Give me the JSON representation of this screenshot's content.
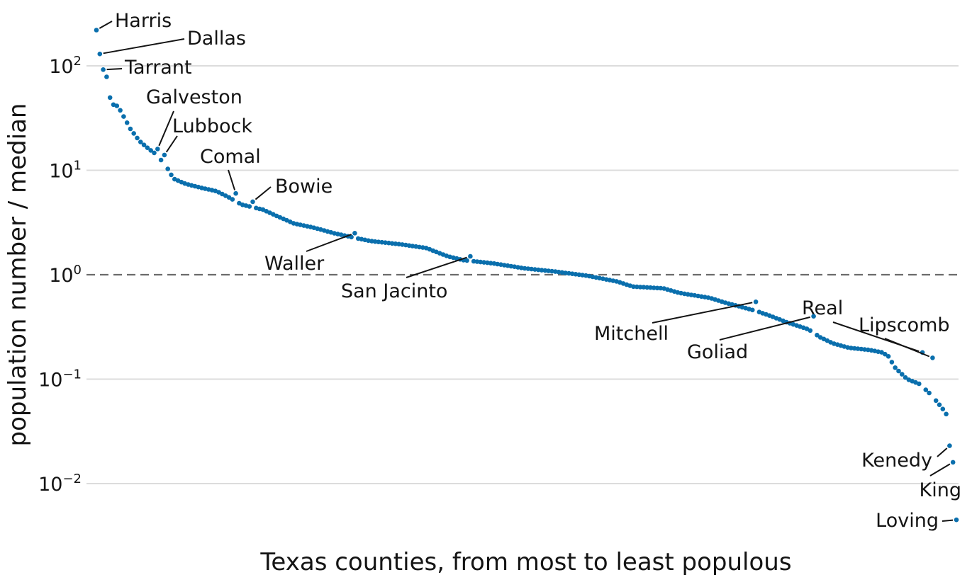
{
  "chart_data": {
    "type": "scatter",
    "xlabel": "Texas counties, from most to least populous",
    "ylabel": "population number / median",
    "y_scale": "log10",
    "ylim": [
      0.0035,
      300
    ],
    "grid": "horizontal",
    "reference_line": {
      "y": 1,
      "style": "dashed"
    },
    "y_ticks": [
      {
        "value": 0.01,
        "base": "10",
        "exp": "−2"
      },
      {
        "value": 0.1,
        "base": "10",
        "exp": "−1"
      },
      {
        "value": 1,
        "base": "10",
        "exp": "0"
      },
      {
        "value": 10,
        "base": "10",
        "exp": "1"
      },
      {
        "value": 100,
        "base": "10",
        "exp": "2"
      }
    ],
    "point_color": "#0a6fad",
    "n_counties": 254,
    "curve_anchors": [
      [
        1,
        220
      ],
      [
        2,
        130
      ],
      [
        3,
        100
      ],
      [
        4,
        92
      ],
      [
        5,
        55
      ],
      [
        6,
        43
      ],
      [
        8,
        41
      ],
      [
        10,
        32
      ],
      [
        12,
        25
      ],
      [
        15,
        19
      ],
      [
        18,
        16
      ],
      [
        20,
        14.5
      ],
      [
        22,
        12.5
      ],
      [
        24,
        10.5
      ],
      [
        26,
        8.3
      ],
      [
        30,
        7.4
      ],
      [
        35,
        6.8
      ],
      [
        40,
        6.3
      ],
      [
        44,
        5.5
      ],
      [
        48,
        4.7
      ],
      [
        55,
        4.2
      ],
      [
        60,
        3.6
      ],
      [
        65,
        3.1
      ],
      [
        72,
        2.8
      ],
      [
        78,
        2.5
      ],
      [
        85,
        2.25
      ],
      [
        90,
        2.1
      ],
      [
        100,
        1.95
      ],
      [
        108,
        1.8
      ],
      [
        115,
        1.5
      ],
      [
        120,
        1.38
      ],
      [
        130,
        1.28
      ],
      [
        140,
        1.15
      ],
      [
        150,
        1.07
      ],
      [
        160,
        0.98
      ],
      [
        170,
        0.86
      ],
      [
        175,
        0.77
      ],
      [
        185,
        0.74
      ],
      [
        190,
        0.67
      ],
      [
        200,
        0.6
      ],
      [
        205,
        0.54
      ],
      [
        215,
        0.45
      ],
      [
        220,
        0.4
      ],
      [
        225,
        0.35
      ],
      [
        232,
        0.3
      ],
      [
        236,
        0.25
      ],
      [
        240,
        0.22
      ],
      [
        245,
        0.2
      ],
      [
        252,
        0.19
      ],
      [
        256,
        0.18
      ],
      [
        258,
        0.165
      ],
      [
        260,
        0.13
      ],
      [
        264,
        0.1
      ],
      [
        268,
        0.09
      ],
      [
        272,
        0.07
      ],
      [
        276,
        0.05
      ],
      [
        278,
        0.04
      ],
      [
        280,
        0.034
      ]
    ],
    "highlighted": [
      {
        "name": "Harris",
        "rank": 1,
        "value": 220
      },
      {
        "name": "Dallas",
        "rank": 2,
        "value": 130
      },
      {
        "name": "Tarrant",
        "rank": 3,
        "value": 92
      },
      {
        "name": "Galveston",
        "rank": 19,
        "value": 16
      },
      {
        "name": "Lubbock",
        "rank": 21,
        "value": 14
      },
      {
        "name": "Comal",
        "rank": 42,
        "value": 6
      },
      {
        "name": "Bowie",
        "rank": 47,
        "value": 5
      },
      {
        "name": "Waller",
        "rank": 77,
        "value": 2.5
      },
      {
        "name": "San Jacinto",
        "rank": 111,
        "value": 1.5
      },
      {
        "name": "Mitchell",
        "rank": 195,
        "value": 0.55
      },
      {
        "name": "Goliad",
        "rank": 212,
        "value": 0.4
      },
      {
        "name": "Real",
        "rank": 244,
        "value": 0.18
      },
      {
        "name": "Lipscomb",
        "rank": 247,
        "value": 0.16
      },
      {
        "name": "Kenedy",
        "rank": 252,
        "value": 0.023
      },
      {
        "name": "King",
        "rank": 253,
        "value": 0.016
      },
      {
        "name": "Loving",
        "rank": 254,
        "value": 0.0045
      }
    ]
  }
}
